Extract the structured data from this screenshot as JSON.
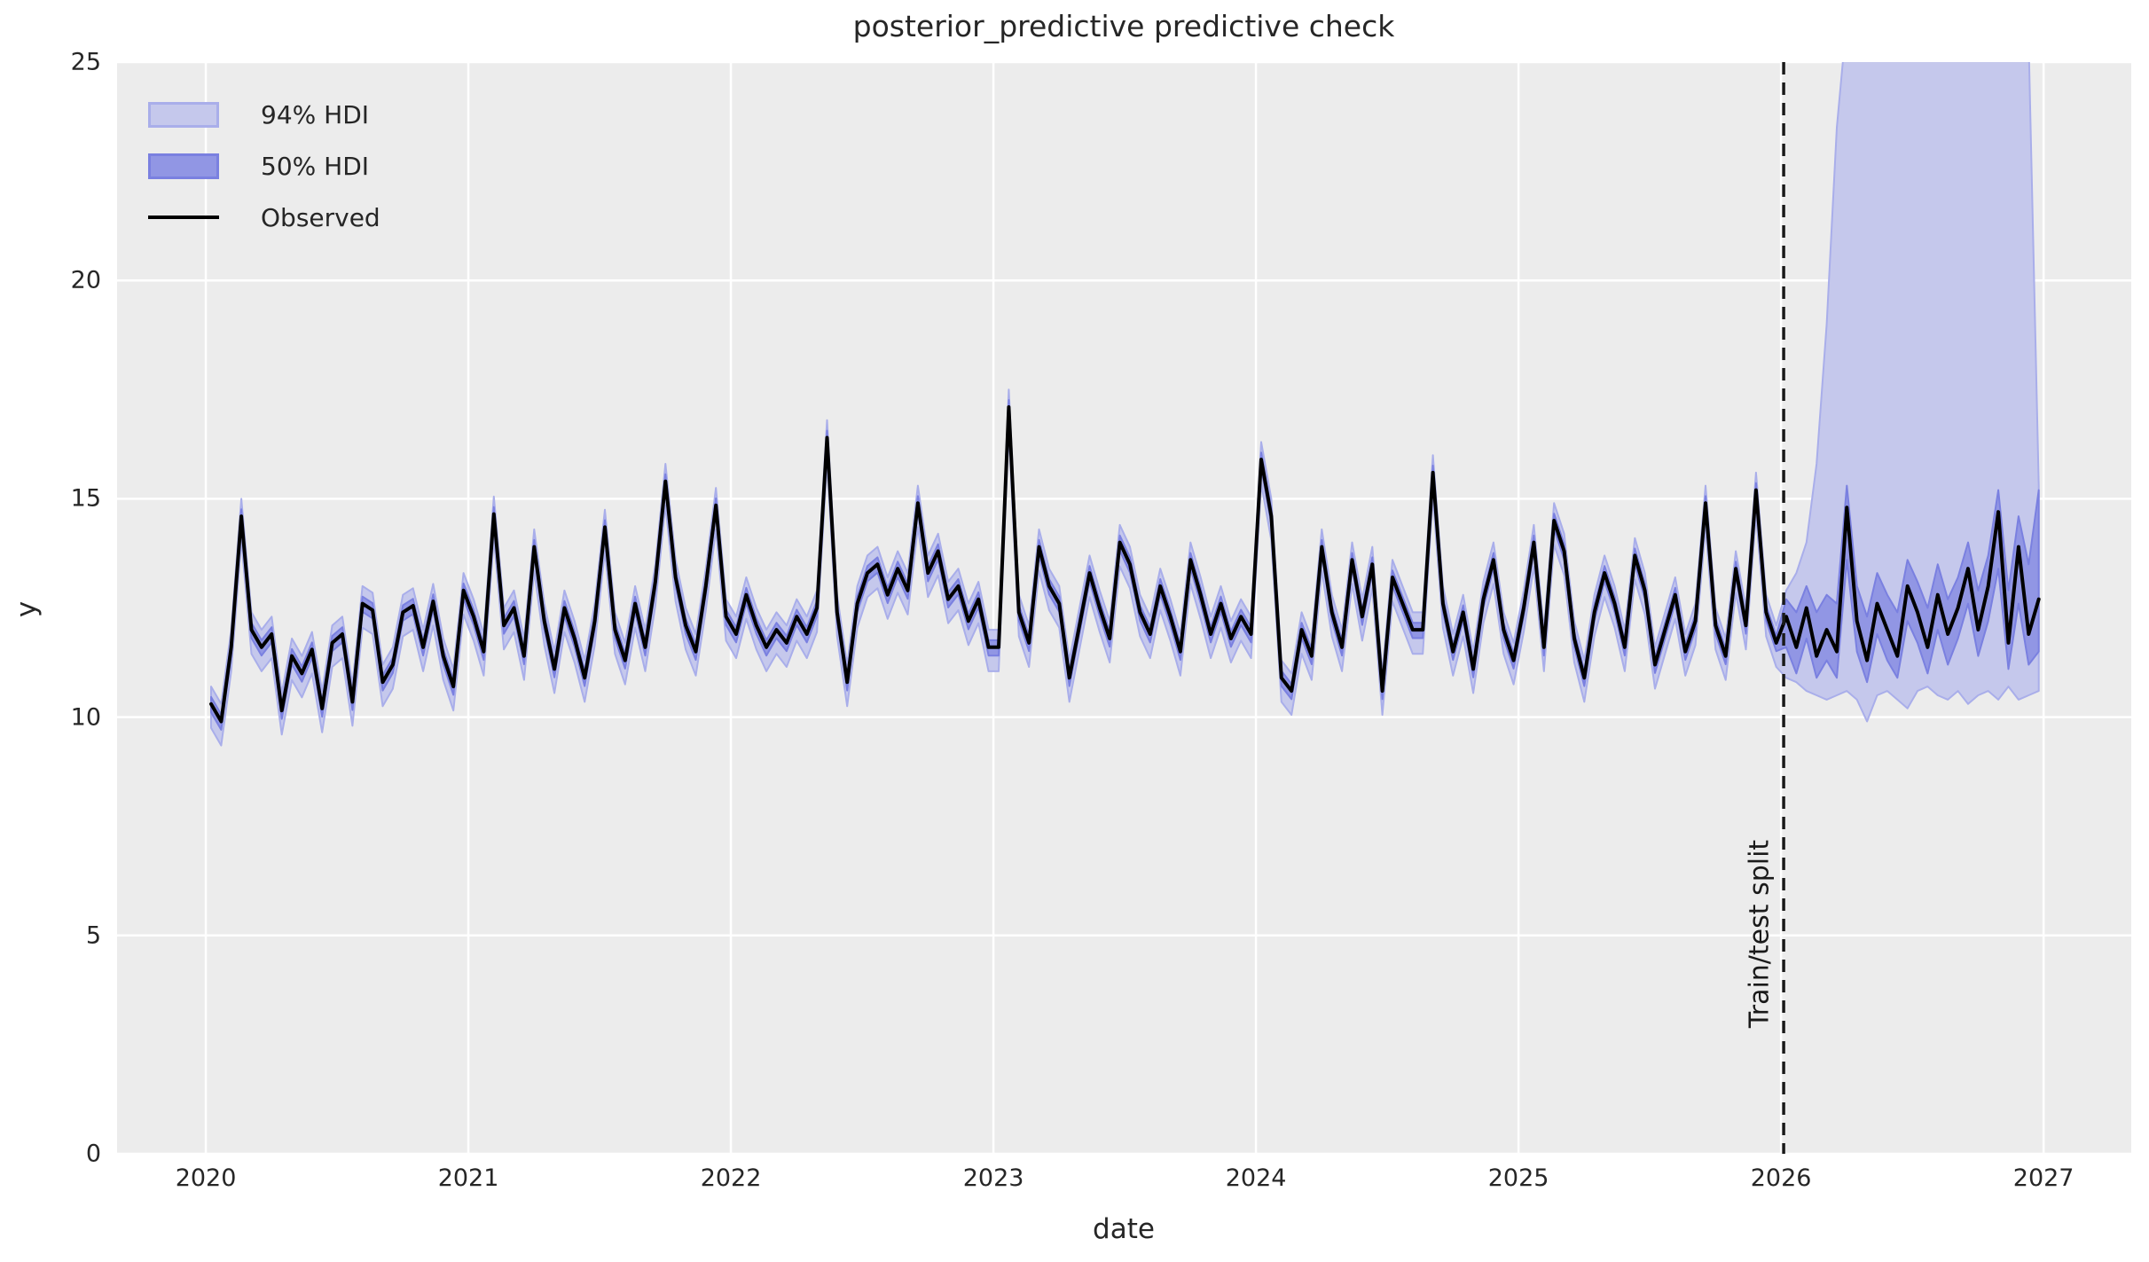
{
  "figure": {
    "background": "#ffffff",
    "text_color": "#262626"
  },
  "chart_data": {
    "type": "line",
    "title": "posterior_predictive predictive check",
    "xlabel": "date",
    "ylabel": "y",
    "axes_background": "#ececec",
    "grid_color": "#ffffff",
    "grid": "on-white-major",
    "x_ticks": [
      2020,
      2021,
      2022,
      2023,
      2024,
      2025,
      2026,
      2027
    ],
    "y_ticks": [
      0,
      5,
      10,
      15,
      20,
      25
    ],
    "x_range": [
      2019.662,
      2027.334
    ],
    "y_range": [
      0,
      25
    ],
    "legend": {
      "position": "upper-left",
      "entries": [
        {
          "label": "94% HDI",
          "type": "patch",
          "fill": "#c5c8ec",
          "edge": "#a9aeea"
        },
        {
          "label": "50% HDI",
          "type": "patch",
          "fill": "#9196e4",
          "edge": "#7a80e0"
        },
        {
          "label": "Observed",
          "type": "line",
          "color": "#000000"
        }
      ]
    },
    "split_line": {
      "x": 2026.01,
      "label": "Train/test split",
      "style": "dashed",
      "color": "#1a1a1a"
    },
    "observed_color": "#000000",
    "series_x": {
      "start": 2020.02,
      "step_years": 0.0384615,
      "count": 182,
      "frequency": "biweekly"
    },
    "observed": [
      10.3,
      9.9,
      11.6,
      14.6,
      12.0,
      11.6,
      11.9,
      10.15,
      11.4,
      11.0,
      11.55,
      10.2,
      11.7,
      11.9,
      10.35,
      12.6,
      12.45,
      10.8,
      11.2,
      12.4,
      12.55,
      11.6,
      12.65,
      11.4,
      10.7,
      12.9,
      12.3,
      11.5,
      14.65,
      12.1,
      12.5,
      11.4,
      13.9,
      12.2,
      11.1,
      12.5,
      11.8,
      10.9,
      12.2,
      14.35,
      12.0,
      11.3,
      12.6,
      11.6,
      13.1,
      15.4,
      13.2,
      12.1,
      11.5,
      13.0,
      14.85,
      12.3,
      11.9,
      12.8,
      12.1,
      11.6,
      12.0,
      11.7,
      12.3,
      11.9,
      12.5,
      16.4,
      12.4,
      10.8,
      12.6,
      13.3,
      13.5,
      12.8,
      13.4,
      12.9,
      14.9,
      13.3,
      13.8,
      12.7,
      13.0,
      12.2,
      12.7,
      11.6,
      11.6,
      17.1,
      12.4,
      11.7,
      13.9,
      13.0,
      12.6,
      10.9,
      12.1,
      13.3,
      12.5,
      11.8,
      14.0,
      13.5,
      12.4,
      11.9,
      13.0,
      12.3,
      11.5,
      13.6,
      12.8,
      11.9,
      12.6,
      11.8,
      12.3,
      11.9,
      15.9,
      14.6,
      10.9,
      10.6,
      12.0,
      11.4,
      13.9,
      12.4,
      11.6,
      13.6,
      12.3,
      13.5,
      10.6,
      13.2,
      12.6,
      12.0,
      12.0,
      15.6,
      12.6,
      11.5,
      12.4,
      11.1,
      12.7,
      13.6,
      12.0,
      11.3,
      12.5,
      14.0,
      11.6,
      14.5,
      13.8,
      11.8,
      10.9,
      12.4,
      13.3,
      12.6,
      11.6,
      13.7,
      12.9,
      11.2,
      12.0,
      12.8,
      11.5,
      12.2,
      14.9,
      12.1,
      11.4,
      13.4,
      12.1,
      15.2,
      12.4,
      11.7,
      12.3,
      11.6,
      12.5,
      11.4,
      12.0,
      11.5,
      14.8,
      12.2,
      11.3,
      12.6,
      12.0,
      11.4,
      13.0,
      12.4,
      11.6,
      12.8,
      11.9,
      12.5,
      13.4,
      12.0,
      13.0,
      14.7,
      11.7,
      13.9,
      11.9,
      12.7
    ],
    "hdi_94": {
      "fill": "#c5c8ec",
      "edge": "#a9aeea",
      "train_offset_above": 0.4,
      "train_offset_below": 0.55,
      "forecast_start_index": 156,
      "note": "upper bound exceeds plot top (>25) from ~2026.25 to ~2026.93",
      "forecast_hi": [
        12.9,
        13.3,
        14.0,
        15.8,
        19.0,
        23.5,
        26,
        26,
        26,
        26,
        26,
        26,
        26,
        26,
        26,
        26,
        26,
        26,
        26,
        26,
        26,
        26,
        26,
        26,
        25.5,
        15.3
      ],
      "forecast_lo": [
        10.9,
        10.8,
        10.6,
        10.5,
        10.4,
        10.5,
        10.6,
        10.4,
        9.9,
        10.5,
        10.6,
        10.4,
        10.2,
        10.6,
        10.7,
        10.5,
        10.4,
        10.6,
        10.3,
        10.5,
        10.6,
        10.4,
        10.7,
        10.4,
        10.5,
        10.6
      ]
    },
    "hdi_50": {
      "fill": "#9196e4",
      "edge": "#7a80e0",
      "train_offset_above": 0.16,
      "train_offset_below": 0.19,
      "forecast_start_index": 156,
      "forecast_hi": [
        12.7,
        12.4,
        13.0,
        12.4,
        12.8,
        12.6,
        15.3,
        13.0,
        12.3,
        13.3,
        12.8,
        12.4,
        13.6,
        13.1,
        12.5,
        13.5,
        12.7,
        13.2,
        14.0,
        12.9,
        13.7,
        15.2,
        12.9,
        14.6,
        13.5,
        15.2
      ],
      "forecast_lo": [
        11.6,
        11.0,
        11.8,
        10.9,
        11.3,
        10.9,
        13.6,
        11.5,
        10.8,
        11.9,
        11.3,
        10.9,
        12.2,
        11.7,
        11.0,
        12.0,
        11.2,
        11.8,
        12.6,
        11.4,
        12.2,
        13.4,
        11.1,
        12.6,
        11.2,
        11.5
      ]
    }
  }
}
